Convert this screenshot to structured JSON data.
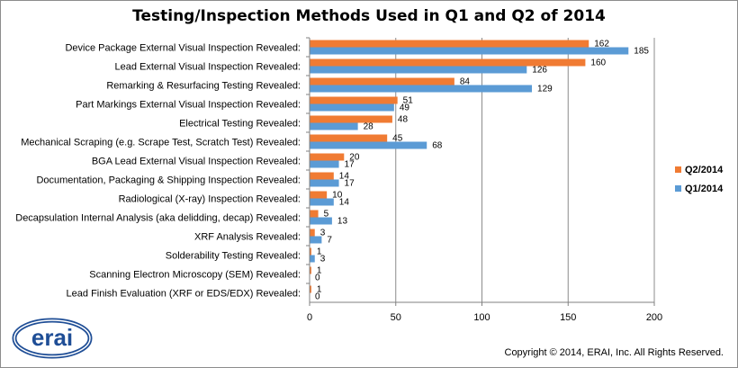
{
  "logo_text": "erai",
  "copyright": "Copyright © 2014, ERAI, Inc.  All Rights Reserved.",
  "colors": {
    "q2": "#f07b33",
    "q1": "#5b9bd5",
    "grid": "#8c8c8c",
    "axis": "#808080"
  },
  "chart_data": {
    "type": "bar",
    "orientation": "horizontal",
    "title": "Testing/Inspection  Methods  Used in Q1 and Q2 of 2014",
    "categories": [
      "Device Package External Visual Inspection Revealed:",
      "Lead External Visual Inspection Revealed:",
      "Remarking & Resurfacing Testing Revealed:",
      "Part Markings External Visual Inspection Revealed:",
      "Electrical Testing Revealed:",
      "Mechanical Scraping (e.g. Scrape Test, Scratch Test) Revealed:",
      "BGA Lead External Visual Inspection Revealed:",
      "Documentation, Packaging & Shipping Inspection Revealed:",
      "Radiological (X-ray) Inspection Revealed:",
      "Decapsulation Internal Analysis (aka delidding, decap) Revealed:",
      "XRF Analysis Revealed:",
      "Solderability Testing Revealed:",
      "Scanning Electron Microscopy (SEM) Revealed:",
      "Lead Finish Evaluation  (XRF or EDS/EDX) Revealed:"
    ],
    "series": [
      {
        "name": "Q2/2014",
        "color": "#f07b33",
        "values": [
          162,
          160,
          84,
          51,
          48,
          45,
          20,
          14,
          10,
          5,
          3,
          1,
          1,
          1
        ]
      },
      {
        "name": "Q1/2014",
        "color": "#5b9bd5",
        "values": [
          185,
          126,
          129,
          49,
          28,
          68,
          17,
          17,
          14,
          13,
          7,
          3,
          0,
          0
        ]
      }
    ],
    "xlim": [
      0,
      200
    ],
    "xticks": [
      "0",
      "50",
      "100",
      "150",
      "200"
    ],
    "legend_entries": [
      "Q2/2014",
      "Q1/2014"
    ],
    "legend_position": "right",
    "grid": true
  }
}
